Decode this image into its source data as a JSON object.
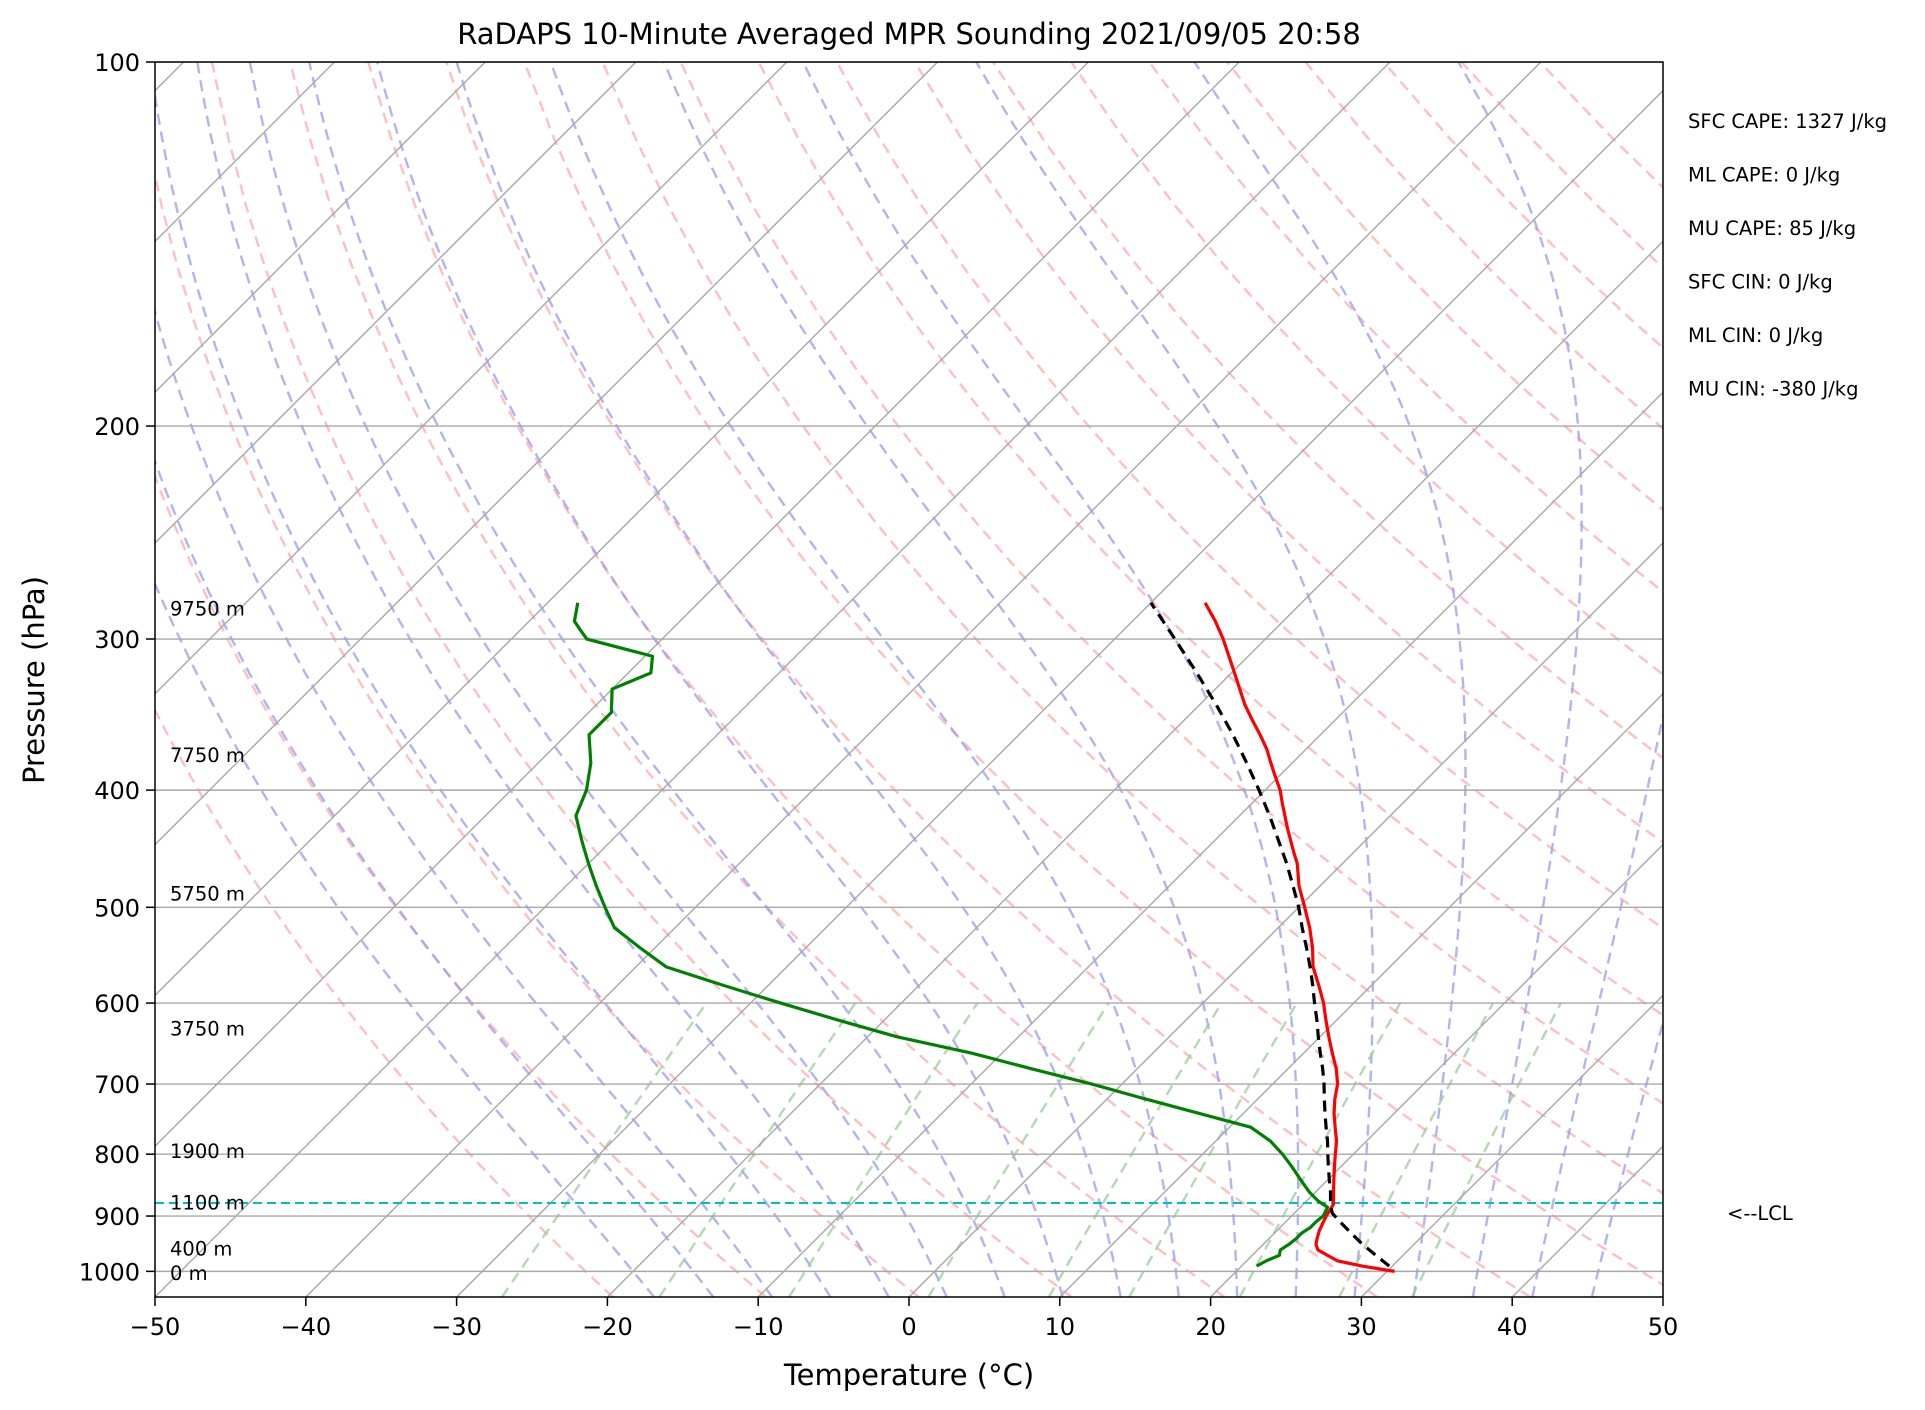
{
  "chart_data": {
    "type": "line",
    "title": "RaDAPS 10-Minute Averaged MPR Sounding 2021/09/05 20:58",
    "xlabel": "Temperature (°C)",
    "ylabel": "Pressure (hPa)",
    "xlim": [
      -50,
      50
    ],
    "ylim": [
      1050,
      100
    ],
    "y_scale": "log",
    "skew_t": true,
    "grid": true,
    "x_ticks": [
      -50,
      -40,
      -30,
      -20,
      -10,
      0,
      10,
      20,
      30,
      40,
      50
    ],
    "x_tick_labels": [
      "−50",
      "−40",
      "−30",
      "−20",
      "−10",
      "0",
      "10",
      "20",
      "30",
      "40",
      "50"
    ],
    "y_ticks": [
      100,
      200,
      300,
      400,
      500,
      600,
      700,
      800,
      900,
      1000
    ],
    "y_tick_labels": [
      "100",
      "200",
      "300",
      "400",
      "500",
      "600",
      "700",
      "800",
      "900",
      "1000"
    ],
    "series": [
      {
        "color": "#ff0000",
        "points": [
          [
            1000,
            30.5
          ],
          [
            990,
            28
          ],
          [
            980,
            26
          ],
          [
            970,
            25
          ],
          [
            960,
            24
          ],
          [
            950,
            23.5
          ],
          [
            940,
            23.2
          ],
          [
            925,
            22.8
          ],
          [
            910,
            22.5
          ],
          [
            900,
            22.3
          ],
          [
            880,
            22
          ],
          [
            860,
            21.2
          ],
          [
            840,
            20.4
          ],
          [
            820,
            19.6
          ],
          [
            800,
            18.8
          ],
          [
            780,
            18
          ],
          [
            760,
            17
          ],
          [
            740,
            16
          ],
          [
            720,
            15.1
          ],
          [
            700,
            14.3
          ],
          [
            680,
            13.2
          ],
          [
            660,
            11.9
          ],
          [
            640,
            10.6
          ],
          [
            620,
            9.3
          ],
          [
            600,
            8
          ],
          [
            580,
            6.5
          ],
          [
            560,
            4.9
          ],
          [
            540,
            3.6
          ],
          [
            520,
            2.1
          ],
          [
            500,
            0.4
          ],
          [
            480,
            -1.4
          ],
          [
            460,
            -3
          ],
          [
            450,
            -4
          ],
          [
            430,
            -6
          ],
          [
            410,
            -8
          ],
          [
            400,
            -9
          ],
          [
            390,
            -10.2
          ],
          [
            380,
            -11.4
          ],
          [
            370,
            -12.6
          ],
          [
            360,
            -14
          ],
          [
            350,
            -15.5
          ],
          [
            340,
            -17
          ],
          [
            320,
            -19.8
          ],
          [
            300,
            -22.8
          ],
          [
            290,
            -24.5
          ],
          [
            280,
            -26.4
          ]
        ]
      },
      {
        "color": "#008000",
        "points": [
          [
            990,
            21
          ],
          [
            980,
            21.3
          ],
          [
            970,
            21.8
          ],
          [
            960,
            21.5
          ],
          [
            950,
            21.7
          ],
          [
            940,
            21.8
          ],
          [
            930,
            21.8
          ],
          [
            920,
            22
          ],
          [
            910,
            22
          ],
          [
            900,
            22.1
          ],
          [
            885,
            21.8
          ],
          [
            875,
            20.8
          ],
          [
            860,
            19.6
          ],
          [
            840,
            18.2
          ],
          [
            820,
            16.8
          ],
          [
            800,
            15.3
          ],
          [
            780,
            13.6
          ],
          [
            760,
            11.4
          ],
          [
            740,
            7
          ],
          [
            720,
            2.5
          ],
          [
            700,
            -2
          ],
          [
            680,
            -7
          ],
          [
            660,
            -12
          ],
          [
            640,
            -18
          ],
          [
            620,
            -23
          ],
          [
            600,
            -28
          ],
          [
            580,
            -33
          ],
          [
            560,
            -38
          ],
          [
            540,
            -41
          ],
          [
            520,
            -44
          ],
          [
            500,
            -46
          ],
          [
            480,
            -48
          ],
          [
            460,
            -50
          ],
          [
            440,
            -52
          ],
          [
            420,
            -54
          ],
          [
            400,
            -55
          ],
          [
            380,
            -56.5
          ],
          [
            360,
            -58.5
          ],
          [
            345,
            -58.5
          ],
          [
            330,
            -60
          ],
          [
            320,
            -58.5
          ],
          [
            310,
            -59.5
          ],
          [
            300,
            -65
          ],
          [
            295,
            -66
          ],
          [
            290,
            -67
          ],
          [
            280,
            -68
          ]
        ]
      },
      {
        "color": "#000000",
        "dashed": true,
        "points": [
          [
            990,
            29.8
          ],
          [
            970,
            28.2
          ],
          [
            950,
            26.6
          ],
          [
            930,
            25.1
          ],
          [
            910,
            23.6
          ],
          [
            895,
            22.5
          ],
          [
            880,
            21.8
          ],
          [
            860,
            21
          ],
          [
            840,
            20.1
          ],
          [
            820,
            19.2
          ],
          [
            800,
            18.3
          ],
          [
            780,
            17.4
          ],
          [
            760,
            16.4
          ],
          [
            740,
            15.4
          ],
          [
            720,
            14.4
          ],
          [
            700,
            13.4
          ],
          [
            680,
            12.3
          ],
          [
            660,
            11.1
          ],
          [
            640,
            9.9
          ],
          [
            620,
            8.7
          ],
          [
            600,
            7.4
          ],
          [
            580,
            6.1
          ],
          [
            560,
            4.7
          ],
          [
            540,
            3.2
          ],
          [
            520,
            1.6
          ],
          [
            500,
            0
          ],
          [
            480,
            -1.8
          ],
          [
            460,
            -3.7
          ],
          [
            440,
            -5.8
          ],
          [
            420,
            -8
          ],
          [
            400,
            -10.4
          ],
          [
            380,
            -13
          ],
          [
            360,
            -15.8
          ],
          [
            340,
            -18.9
          ],
          [
            320,
            -22.3
          ],
          [
            300,
            -26
          ],
          [
            280,
            -30
          ]
        ]
      }
    ],
    "lcl": {
      "pressure": 878,
      "label": "<--LCL",
      "color": "#00bfbf"
    },
    "height_labels": [
      {
        "pressure": 283,
        "label": "9750 m"
      },
      {
        "pressure": 374,
        "label": "7750 m"
      },
      {
        "pressure": 487,
        "label": "5750 m"
      },
      {
        "pressure": 630,
        "label": "3750 m"
      },
      {
        "pressure": 795,
        "label": "1900 m"
      },
      {
        "pressure": 877,
        "label": "1100 m"
      },
      {
        "pressure": 957,
        "label": "400 m"
      },
      {
        "pressure": 1003,
        "label": "0 m"
      }
    ],
    "annotations": [
      "SFC CAPE: 1327 J/kg",
      "ML CAPE: 0 J/kg",
      "MU CAPE: 85 J/kg",
      "SFC CIN: 0 J/kg",
      "ML CIN: 0 J/kg",
      "MU CIN: -380 J/kg"
    ],
    "colors": {
      "isotherm": "#a8a8a8",
      "dry_adiabat": "#ffaaaa",
      "moist_adiabat": "#9999ee",
      "mixing_ratio": "#99cc99",
      "isobar": "#a8a8a8"
    }
  }
}
